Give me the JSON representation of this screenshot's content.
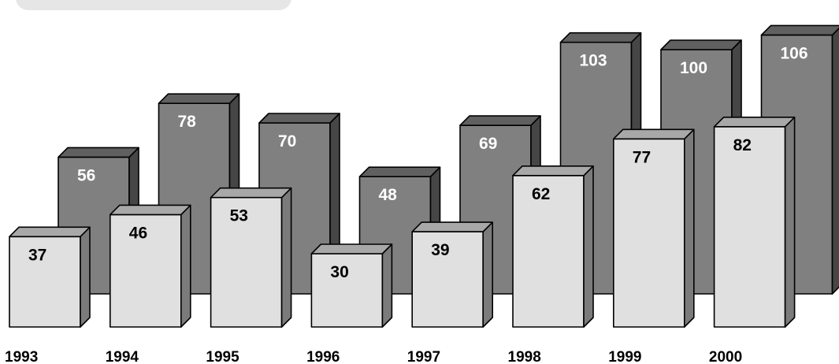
{
  "chart_data": {
    "type": "bar",
    "categories": [
      "1993",
      "1994",
      "1995",
      "1996",
      "1997",
      "1998",
      "1999",
      "2000"
    ],
    "series": [
      {
        "values": [
          56,
          78,
          70,
          48,
          69,
          103,
          100,
          106
        ],
        "color": "#808080"
      },
      {
        "values": [
          37,
          46,
          53,
          30,
          39,
          62,
          77,
          82
        ],
        "color": "#e0e0e0"
      }
    ],
    "ylim": [
      0,
      110
    ],
    "grid": false,
    "legend": "none",
    "style": "3d-columns"
  }
}
